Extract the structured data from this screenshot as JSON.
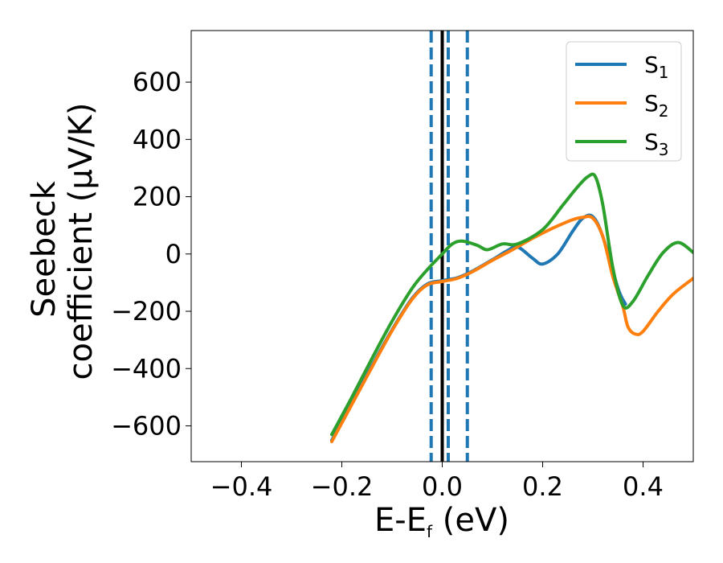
{
  "chart_data": {
    "type": "line",
    "xlabel": {
      "main": "E-E",
      "sub": "f",
      "tail": " (eV)"
    },
    "ylabel": {
      "line1": "Seebeck",
      "line2": "coefficient  (μV/K)"
    },
    "xlim": [
      -0.5,
      0.5
    ],
    "ylim": [
      -725,
      780
    ],
    "xticks": [
      -0.4,
      -0.2,
      0.0,
      0.2,
      0.4
    ],
    "xtick_labels": [
      "−0.4",
      "−0.2",
      "0.0",
      "0.2",
      "0.4"
    ],
    "yticks": [
      -600,
      -400,
      -200,
      0,
      200,
      400,
      600
    ],
    "ytick_labels": [
      "−600",
      "−400",
      "−200",
      "0",
      "200",
      "400",
      "600"
    ],
    "grid": false,
    "legend_position": "top-right",
    "vlines": [
      {
        "x": 0.0,
        "style": "solid",
        "color": "#000000"
      },
      {
        "x": -0.022,
        "style": "dashed",
        "color": "#1f77b4"
      },
      {
        "x": 0.012,
        "style": "dashed",
        "color": "#1f77b4"
      },
      {
        "x": 0.05,
        "style": "dashed",
        "color": "#1f77b4"
      }
    ],
    "series": [
      {
        "name": "S",
        "sub": "1",
        "color": "#1f77b4",
        "x": [
          -0.22,
          -0.18,
          -0.14,
          -0.1,
          -0.06,
          -0.03,
          0.0,
          0.03,
          0.06,
          0.1,
          0.13,
          0.15,
          0.18,
          0.2,
          0.23,
          0.26,
          0.28,
          0.3,
          0.32,
          0.35,
          0.365
        ],
        "y": [
          -650,
          -520,
          -390,
          -265,
          -155,
          -105,
          -93,
          -83,
          -60,
          -20,
          12,
          25,
          -15,
          -35,
          0,
          80,
          125,
          130,
          60,
          -120,
          -175
        ]
      },
      {
        "name": "S",
        "sub": "2",
        "color": "#ff7f0e",
        "x": [
          -0.22,
          -0.18,
          -0.14,
          -0.1,
          -0.06,
          -0.03,
          0.0,
          0.03,
          0.06,
          0.1,
          0.14,
          0.18,
          0.22,
          0.26,
          0.28,
          0.3,
          0.32,
          0.34,
          0.36,
          0.37,
          0.385,
          0.4,
          0.43,
          0.46,
          0.5
        ],
        "y": [
          -655,
          -525,
          -395,
          -268,
          -158,
          -108,
          -96,
          -85,
          -62,
          -22,
          15,
          55,
          90,
          120,
          128,
          125,
          60,
          -80,
          -185,
          -255,
          -280,
          -270,
          -200,
          -140,
          -85
        ]
      },
      {
        "name": "S",
        "sub": "3",
        "color": "#2ca02c",
        "x": [
          -0.22,
          -0.18,
          -0.14,
          -0.1,
          -0.06,
          -0.03,
          0.0,
          0.02,
          0.04,
          0.07,
          0.09,
          0.12,
          0.15,
          0.2,
          0.24,
          0.27,
          0.29,
          0.305,
          0.32,
          0.34,
          0.36,
          0.38,
          0.41,
          0.44,
          0.47,
          0.5
        ],
        "y": [
          -630,
          -500,
          -365,
          -235,
          -120,
          -55,
          0,
          35,
          45,
          30,
          15,
          35,
          35,
          85,
          170,
          235,
          270,
          270,
          170,
          -50,
          -180,
          -165,
          -75,
          5,
          40,
          5
        ]
      }
    ]
  }
}
